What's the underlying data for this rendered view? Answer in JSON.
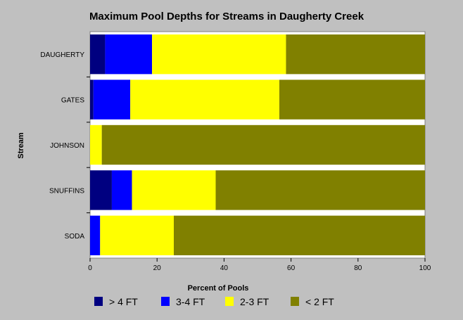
{
  "chart_data": {
    "type": "bar",
    "orientation": "horizontal",
    "stacked": true,
    "title": "Maximum Pool Depths for Streams in Daugherty Creek",
    "xlabel": "Percent of Pools",
    "ylabel": "Stream",
    "xlim": [
      0,
      100
    ],
    "xticks": [
      0,
      20,
      40,
      60,
      80,
      100
    ],
    "grid": false,
    "legend_position": "bottom",
    "categories": [
      "DAUGHERTY",
      "GATES",
      "JOHNSON",
      "SNUFFINS",
      "SODA"
    ],
    "series": [
      {
        "name": "> 4 FT",
        "color": "#000080",
        "values": [
          4.5,
          1,
          0,
          6.5,
          0
        ]
      },
      {
        "name": "3-4 FT",
        "color": "#0000ff",
        "values": [
          14,
          11,
          0,
          6,
          3
        ]
      },
      {
        "name": "2-3 FT",
        "color": "#ffff00",
        "values": [
          40,
          44.5,
          3.5,
          25,
          22
        ]
      },
      {
        "name": "< 2 FT",
        "color": "#808000",
        "values": [
          41.5,
          43.5,
          96.5,
          62.5,
          75
        ]
      }
    ]
  }
}
